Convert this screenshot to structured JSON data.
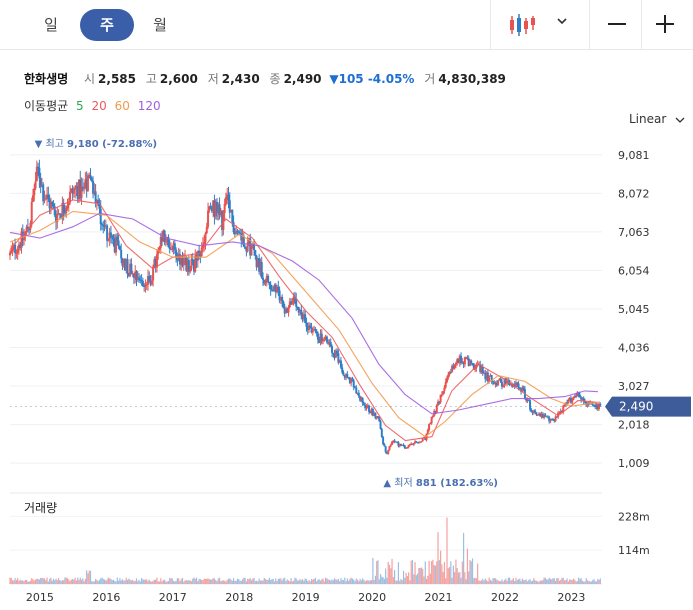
{
  "toolbar": {
    "periods": [
      "일",
      "주",
      "월"
    ],
    "selected_period": "주",
    "chart_type_icon": "candlestick-icon",
    "dropdown_icon": "chevron-down-icon",
    "zoom_out_icon": "minus-icon",
    "zoom_in_icon": "plus-icon"
  },
  "quote": {
    "name": "한화생명",
    "open_label": "시",
    "open": "2,585",
    "high_label": "고",
    "high": "2,600",
    "low_label": "저",
    "low": "2,430",
    "close_label": "종",
    "close": "2,490",
    "change": "▼105 -4.05%",
    "volume_label": "거",
    "volume": "4,830,389"
  },
  "moving_average": {
    "label": "이동평균",
    "periods": [
      {
        "value": "5",
        "color": "#2fa84f"
      },
      {
        "value": "20",
        "color": "#ef5a5a"
      },
      {
        "value": "60",
        "color": "#f39a4a"
      },
      {
        "value": "120",
        "color": "#a35ee0"
      }
    ]
  },
  "scale_mode": "Linear",
  "colors": {
    "up": "#e8524f",
    "down": "#2f7fc8",
    "accent": "#3a5fa8",
    "price_tag": "#3d5c99",
    "extreme_label": "#4a6fb0"
  },
  "chart_data": {
    "type": "candlestick",
    "interval": "weekly",
    "price_axis": {
      "ticks": [
        "9,081",
        "8,072",
        "7,063",
        "6,054",
        "5,045",
        "4,036",
        "3,027",
        "2,018",
        "1,009"
      ],
      "tick_values": [
        9081,
        8072,
        7063,
        6054,
        5045,
        4036,
        3027,
        2018,
        1009
      ],
      "range": [
        620,
        9600
      ]
    },
    "x_axis": {
      "labels": [
        "2015",
        "2016",
        "2017",
        "2018",
        "2019",
        "2020",
        "2021",
        "2022",
        "2023"
      ],
      "range": [
        2014.55,
        2023.46
      ]
    },
    "last_price": {
      "value": 2490,
      "label": "2,490"
    },
    "high_marker": {
      "value": 9180,
      "x": 2014.98,
      "label": "최고",
      "value_label": "9,180",
      "pct": "(-72.88%)"
    },
    "low_marker": {
      "value": 881,
      "x": 2020.2,
      "label": "최저",
      "value_label": "881",
      "pct": "(182.63%)"
    },
    "close_path": [
      [
        2014.55,
        6450
      ],
      [
        2014.65,
        6700
      ],
      [
        2014.75,
        6900
      ],
      [
        2014.85,
        7300
      ],
      [
        2014.92,
        8300
      ],
      [
        2014.98,
        8700
      ],
      [
        2015.05,
        8100
      ],
      [
        2015.15,
        7800
      ],
      [
        2015.25,
        7500
      ],
      [
        2015.35,
        7700
      ],
      [
        2015.45,
        8000
      ],
      [
        2015.55,
        8200
      ],
      [
        2015.65,
        8100
      ],
      [
        2015.75,
        8400
      ],
      [
        2015.85,
        7900
      ],
      [
        2015.95,
        7300
      ],
      [
        2016.05,
        6900
      ],
      [
        2016.15,
        6700
      ],
      [
        2016.25,
        6300
      ],
      [
        2016.35,
        6100
      ],
      [
        2016.45,
        6000
      ],
      [
        2016.55,
        5700
      ],
      [
        2016.65,
        5750
      ],
      [
        2016.75,
        6300
      ],
      [
        2016.85,
        6900
      ],
      [
        2016.95,
        6700
      ],
      [
        2017.05,
        6500
      ],
      [
        2017.15,
        6300
      ],
      [
        2017.25,
        6100
      ],
      [
        2017.35,
        6300
      ],
      [
        2017.45,
        6600
      ],
      [
        2017.55,
        7600
      ],
      [
        2017.65,
        7700
      ],
      [
        2017.75,
        7300
      ],
      [
        2017.8,
        7900
      ],
      [
        2017.9,
        7300
      ],
      [
        2018.0,
        7000
      ],
      [
        2018.1,
        6800
      ],
      [
        2018.2,
        6600
      ],
      [
        2018.3,
        6200
      ],
      [
        2018.4,
        5800
      ],
      [
        2018.5,
        5600
      ],
      [
        2018.6,
        5400
      ],
      [
        2018.7,
        5000
      ],
      [
        2018.8,
        5300
      ],
      [
        2018.9,
        4900
      ],
      [
        2019.0,
        4700
      ],
      [
        2019.1,
        4500
      ],
      [
        2019.2,
        4300
      ],
      [
        2019.3,
        4200
      ],
      [
        2019.4,
        4000
      ],
      [
        2019.5,
        3700
      ],
      [
        2019.6,
        3300
      ],
      [
        2019.7,
        3100
      ],
      [
        2019.8,
        2700
      ],
      [
        2019.9,
        2500
      ],
      [
        2020.0,
        2350
      ],
      [
        2020.1,
        2150
      ],
      [
        2020.17,
        1500
      ],
      [
        2020.22,
        1200
      ],
      [
        2020.3,
        1600
      ],
      [
        2020.4,
        1500
      ],
      [
        2020.5,
        1400
      ],
      [
        2020.6,
        1500
      ],
      [
        2020.7,
        1550
      ],
      [
        2020.8,
        1650
      ],
      [
        2020.9,
        2200
      ],
      [
        2021.0,
        2600
      ],
      [
        2021.1,
        3100
      ],
      [
        2021.2,
        3500
      ],
      [
        2021.3,
        3700
      ],
      [
        2021.4,
        3700
      ],
      [
        2021.5,
        3600
      ],
      [
        2021.6,
        3500
      ],
      [
        2021.7,
        3300
      ],
      [
        2021.8,
        3200
      ],
      [
        2021.9,
        3100
      ],
      [
        2022.0,
        3150
      ],
      [
        2022.1,
        3000
      ],
      [
        2022.2,
        3100
      ],
      [
        2022.3,
        2800
      ],
      [
        2022.4,
        2400
      ],
      [
        2022.5,
        2300
      ],
      [
        2022.6,
        2200
      ],
      [
        2022.7,
        2100
      ],
      [
        2022.8,
        2300
      ],
      [
        2022.9,
        2500
      ],
      [
        2023.0,
        2700
      ],
      [
        2023.1,
        2850
      ],
      [
        2023.2,
        2600
      ],
      [
        2023.3,
        2500
      ],
      [
        2023.4,
        2490
      ]
    ],
    "moving_averages": [
      {
        "period": "20",
        "color": "#ef5a5a",
        "points": [
          [
            2014.55,
            6600
          ],
          [
            2015.0,
            7500
          ],
          [
            2015.5,
            7900
          ],
          [
            2015.9,
            7800
          ],
          [
            2016.3,
            6700
          ],
          [
            2016.7,
            6100
          ],
          [
            2017.0,
            6400
          ],
          [
            2017.4,
            6500
          ],
          [
            2017.8,
            7400
          ],
          [
            2018.2,
            6900
          ],
          [
            2018.6,
            5900
          ],
          [
            2019.0,
            5000
          ],
          [
            2019.4,
            4300
          ],
          [
            2019.8,
            3100
          ],
          [
            2020.2,
            2000
          ],
          [
            2020.5,
            1600
          ],
          [
            2020.9,
            1700
          ],
          [
            2021.2,
            2900
          ],
          [
            2021.6,
            3600
          ],
          [
            2022.0,
            3200
          ],
          [
            2022.4,
            2700
          ],
          [
            2022.8,
            2250
          ],
          [
            2023.1,
            2650
          ],
          [
            2023.4,
            2600
          ]
        ]
      },
      {
        "period": "60",
        "color": "#f39a4a",
        "points": [
          [
            2014.55,
            6800
          ],
          [
            2015.0,
            7100
          ],
          [
            2015.5,
            7600
          ],
          [
            2016.0,
            7500
          ],
          [
            2016.5,
            6800
          ],
          [
            2017.0,
            6400
          ],
          [
            2017.5,
            6400
          ],
          [
            2018.0,
            7000
          ],
          [
            2018.5,
            6500
          ],
          [
            2019.0,
            5500
          ],
          [
            2019.5,
            4500
          ],
          [
            2020.0,
            3100
          ],
          [
            2020.4,
            2200
          ],
          [
            2020.8,
            1700
          ],
          [
            2021.1,
            2100
          ],
          [
            2021.5,
            2800
          ],
          [
            2021.9,
            3300
          ],
          [
            2022.3,
            3150
          ],
          [
            2022.7,
            2700
          ],
          [
            2023.0,
            2500
          ],
          [
            2023.4,
            2600
          ]
        ]
      },
      {
        "period": "120",
        "color": "#a35ee0",
        "points": [
          [
            2014.55,
            7050
          ],
          [
            2015.0,
            6900
          ],
          [
            2015.5,
            7200
          ],
          [
            2015.9,
            7550
          ],
          [
            2016.4,
            7400
          ],
          [
            2016.9,
            6900
          ],
          [
            2017.4,
            6700
          ],
          [
            2017.9,
            6800
          ],
          [
            2018.3,
            6700
          ],
          [
            2018.8,
            6300
          ],
          [
            2019.2,
            5800
          ],
          [
            2019.7,
            4800
          ],
          [
            2020.1,
            3600
          ],
          [
            2020.5,
            2800
          ],
          [
            2020.9,
            2300
          ],
          [
            2021.3,
            2400
          ],
          [
            2021.7,
            2550
          ],
          [
            2022.1,
            2700
          ],
          [
            2022.5,
            2700
          ],
          [
            2022.9,
            2750
          ],
          [
            2023.2,
            2900
          ],
          [
            2023.4,
            2880
          ]
        ]
      }
    ],
    "volume_panel": {
      "title": "거래량",
      "ticks": [
        "228m",
        "114m"
      ],
      "tick_values": [
        228,
        114
      ],
      "range": [
        0,
        300
      ]
    }
  }
}
